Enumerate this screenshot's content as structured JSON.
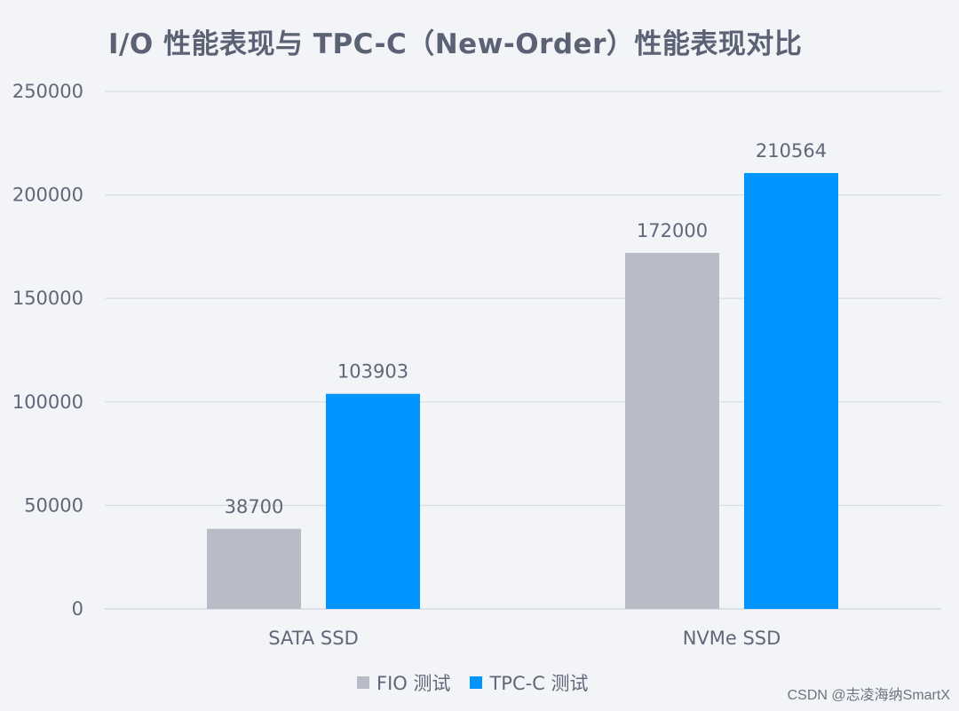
{
  "title": "I/O 性能表现与 TPC-C（New-Order）性能表现对比",
  "watermark": "CSDN @志凌海纳SmartX",
  "colors": {
    "background": "#f3f4f8",
    "grid": "#d8dce4",
    "text": "#5f6778"
  },
  "chart_data": {
    "type": "bar",
    "categories": [
      "SATA SSD",
      "NVMe SSD"
    ],
    "series": [
      {
        "name": "FIO 测试",
        "values": [
          38700,
          172000
        ],
        "color": "#b8bcc6"
      },
      {
        "name": "TPC-C 测试",
        "values": [
          103903,
          210564
        ],
        "color": "#0095ff"
      }
    ],
    "ylim": [
      0,
      250000
    ],
    "yticks": [
      "0",
      "50000",
      "100000",
      "150000",
      "200000",
      "250000"
    ],
    "grid": true,
    "legend_position": "bottom"
  }
}
